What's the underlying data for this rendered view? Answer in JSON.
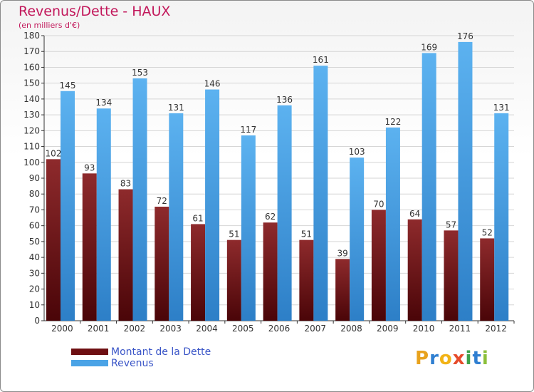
{
  "header": {
    "title": "Revenus/Dette - HAUX",
    "subtitle": "(en milliers d'€)"
  },
  "legend": {
    "items": [
      {
        "label": "Montant de la Dette",
        "color": "#6e0f12"
      },
      {
        "label": "Revenus",
        "color": "#4aa3e6"
      }
    ]
  },
  "brand": {
    "text": "Proxiti",
    "letters": [
      {
        "ch": "P",
        "color": "#e8a21d"
      },
      {
        "ch": "r",
        "color": "#2f7fd1"
      },
      {
        "ch": "o",
        "color": "#f2b316"
      },
      {
        "ch": "x",
        "color": "#e64b2b"
      },
      {
        "ch": "i",
        "color": "#3ea34b"
      },
      {
        "ch": "t",
        "color": "#2f7fd1"
      },
      {
        "ch": "i",
        "color": "#8bbf3a"
      }
    ]
  },
  "chart_data": {
    "type": "bar",
    "title": "Revenus/Dette - HAUX",
    "ylabel": "(en milliers d'€)",
    "xlabel": "",
    "ylim": [
      0,
      180
    ],
    "ytick_step": 10,
    "grid": true,
    "categories": [
      "2000",
      "2001",
      "2002",
      "2003",
      "2004",
      "2005",
      "2006",
      "2007",
      "2008",
      "2009",
      "2010",
      "2011",
      "2012"
    ],
    "series": [
      {
        "name": "Montant de la Dette",
        "color": "#6e0f12",
        "values": [
          102,
          93,
          83,
          72,
          61,
          51,
          62,
          51,
          39,
          70,
          64,
          57,
          52
        ]
      },
      {
        "name": "Revenus",
        "color": "#4aa3e6",
        "values": [
          145,
          134,
          153,
          131,
          146,
          117,
          136,
          161,
          103,
          122,
          169,
          176,
          131
        ]
      }
    ]
  }
}
